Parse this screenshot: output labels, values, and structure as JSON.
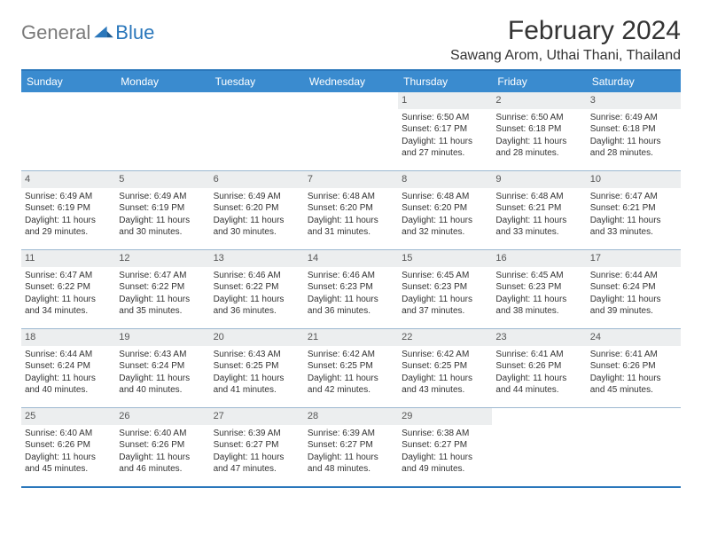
{
  "logo": {
    "general": "General",
    "blue": "Blue"
  },
  "title": "February 2024",
  "location": "Sawang Arom, Uthai Thani, Thailand",
  "colors": {
    "accent": "#3a8bcf",
    "accent_border": "#2a77bb",
    "week_divider": "#9cb8d0",
    "daynum_bg": "#eceeef",
    "text": "#333333",
    "logo_gray": "#7a7a7a"
  },
  "weekdays": [
    "Sunday",
    "Monday",
    "Tuesday",
    "Wednesday",
    "Thursday",
    "Friday",
    "Saturday"
  ],
  "weeks": [
    [
      null,
      null,
      null,
      null,
      {
        "n": "1",
        "sr": "Sunrise: 6:50 AM",
        "ss": "Sunset: 6:17 PM",
        "dl1": "Daylight: 11 hours",
        "dl2": "and 27 minutes."
      },
      {
        "n": "2",
        "sr": "Sunrise: 6:50 AM",
        "ss": "Sunset: 6:18 PM",
        "dl1": "Daylight: 11 hours",
        "dl2": "and 28 minutes."
      },
      {
        "n": "3",
        "sr": "Sunrise: 6:49 AM",
        "ss": "Sunset: 6:18 PM",
        "dl1": "Daylight: 11 hours",
        "dl2": "and 28 minutes."
      }
    ],
    [
      {
        "n": "4",
        "sr": "Sunrise: 6:49 AM",
        "ss": "Sunset: 6:19 PM",
        "dl1": "Daylight: 11 hours",
        "dl2": "and 29 minutes."
      },
      {
        "n": "5",
        "sr": "Sunrise: 6:49 AM",
        "ss": "Sunset: 6:19 PM",
        "dl1": "Daylight: 11 hours",
        "dl2": "and 30 minutes."
      },
      {
        "n": "6",
        "sr": "Sunrise: 6:49 AM",
        "ss": "Sunset: 6:20 PM",
        "dl1": "Daylight: 11 hours",
        "dl2": "and 30 minutes."
      },
      {
        "n": "7",
        "sr": "Sunrise: 6:48 AM",
        "ss": "Sunset: 6:20 PM",
        "dl1": "Daylight: 11 hours",
        "dl2": "and 31 minutes."
      },
      {
        "n": "8",
        "sr": "Sunrise: 6:48 AM",
        "ss": "Sunset: 6:20 PM",
        "dl1": "Daylight: 11 hours",
        "dl2": "and 32 minutes."
      },
      {
        "n": "9",
        "sr": "Sunrise: 6:48 AM",
        "ss": "Sunset: 6:21 PM",
        "dl1": "Daylight: 11 hours",
        "dl2": "and 33 minutes."
      },
      {
        "n": "10",
        "sr": "Sunrise: 6:47 AM",
        "ss": "Sunset: 6:21 PM",
        "dl1": "Daylight: 11 hours",
        "dl2": "and 33 minutes."
      }
    ],
    [
      {
        "n": "11",
        "sr": "Sunrise: 6:47 AM",
        "ss": "Sunset: 6:22 PM",
        "dl1": "Daylight: 11 hours",
        "dl2": "and 34 minutes."
      },
      {
        "n": "12",
        "sr": "Sunrise: 6:47 AM",
        "ss": "Sunset: 6:22 PM",
        "dl1": "Daylight: 11 hours",
        "dl2": "and 35 minutes."
      },
      {
        "n": "13",
        "sr": "Sunrise: 6:46 AM",
        "ss": "Sunset: 6:22 PM",
        "dl1": "Daylight: 11 hours",
        "dl2": "and 36 minutes."
      },
      {
        "n": "14",
        "sr": "Sunrise: 6:46 AM",
        "ss": "Sunset: 6:23 PM",
        "dl1": "Daylight: 11 hours",
        "dl2": "and 36 minutes."
      },
      {
        "n": "15",
        "sr": "Sunrise: 6:45 AM",
        "ss": "Sunset: 6:23 PM",
        "dl1": "Daylight: 11 hours",
        "dl2": "and 37 minutes."
      },
      {
        "n": "16",
        "sr": "Sunrise: 6:45 AM",
        "ss": "Sunset: 6:23 PM",
        "dl1": "Daylight: 11 hours",
        "dl2": "and 38 minutes."
      },
      {
        "n": "17",
        "sr": "Sunrise: 6:44 AM",
        "ss": "Sunset: 6:24 PM",
        "dl1": "Daylight: 11 hours",
        "dl2": "and 39 minutes."
      }
    ],
    [
      {
        "n": "18",
        "sr": "Sunrise: 6:44 AM",
        "ss": "Sunset: 6:24 PM",
        "dl1": "Daylight: 11 hours",
        "dl2": "and 40 minutes."
      },
      {
        "n": "19",
        "sr": "Sunrise: 6:43 AM",
        "ss": "Sunset: 6:24 PM",
        "dl1": "Daylight: 11 hours",
        "dl2": "and 40 minutes."
      },
      {
        "n": "20",
        "sr": "Sunrise: 6:43 AM",
        "ss": "Sunset: 6:25 PM",
        "dl1": "Daylight: 11 hours",
        "dl2": "and 41 minutes."
      },
      {
        "n": "21",
        "sr": "Sunrise: 6:42 AM",
        "ss": "Sunset: 6:25 PM",
        "dl1": "Daylight: 11 hours",
        "dl2": "and 42 minutes."
      },
      {
        "n": "22",
        "sr": "Sunrise: 6:42 AM",
        "ss": "Sunset: 6:25 PM",
        "dl1": "Daylight: 11 hours",
        "dl2": "and 43 minutes."
      },
      {
        "n": "23",
        "sr": "Sunrise: 6:41 AM",
        "ss": "Sunset: 6:26 PM",
        "dl1": "Daylight: 11 hours",
        "dl2": "and 44 minutes."
      },
      {
        "n": "24",
        "sr": "Sunrise: 6:41 AM",
        "ss": "Sunset: 6:26 PM",
        "dl1": "Daylight: 11 hours",
        "dl2": "and 45 minutes."
      }
    ],
    [
      {
        "n": "25",
        "sr": "Sunrise: 6:40 AM",
        "ss": "Sunset: 6:26 PM",
        "dl1": "Daylight: 11 hours",
        "dl2": "and 45 minutes."
      },
      {
        "n": "26",
        "sr": "Sunrise: 6:40 AM",
        "ss": "Sunset: 6:26 PM",
        "dl1": "Daylight: 11 hours",
        "dl2": "and 46 minutes."
      },
      {
        "n": "27",
        "sr": "Sunrise: 6:39 AM",
        "ss": "Sunset: 6:27 PM",
        "dl1": "Daylight: 11 hours",
        "dl2": "and 47 minutes."
      },
      {
        "n": "28",
        "sr": "Sunrise: 6:39 AM",
        "ss": "Sunset: 6:27 PM",
        "dl1": "Daylight: 11 hours",
        "dl2": "and 48 minutes."
      },
      {
        "n": "29",
        "sr": "Sunrise: 6:38 AM",
        "ss": "Sunset: 6:27 PM",
        "dl1": "Daylight: 11 hours",
        "dl2": "and 49 minutes."
      },
      null,
      null
    ]
  ]
}
